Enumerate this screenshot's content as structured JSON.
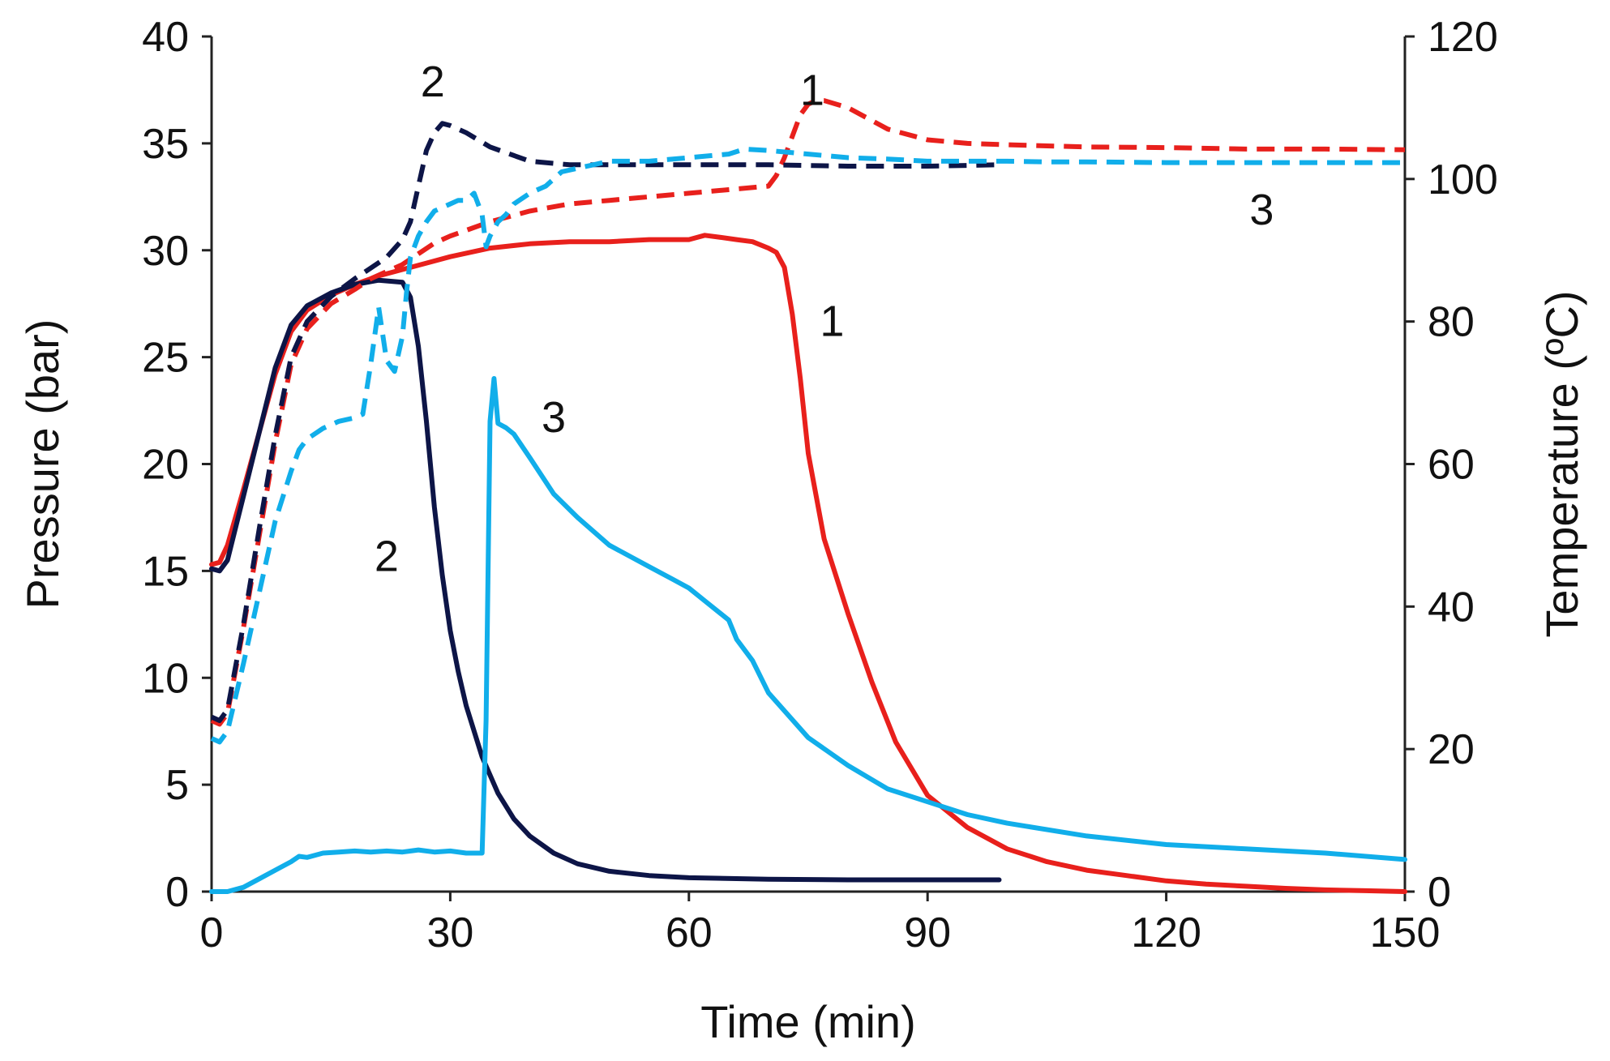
{
  "chart_data": {
    "type": "line",
    "title": "",
    "xlabel": "Time (min)",
    "ylabel": "Pressure (bar)",
    "y2label": "Temperature (ºC)",
    "xlim": [
      0,
      150
    ],
    "ylim": [
      0,
      40
    ],
    "y2lim": [
      0,
      120
    ],
    "xticks": [
      "0",
      "30",
      "60",
      "90",
      "120",
      "150"
    ],
    "yticks": [
      "0",
      "5",
      "10",
      "15",
      "20",
      "25",
      "30",
      "35",
      "40"
    ],
    "y2ticks": [
      "0",
      "20",
      "40",
      "60",
      "80",
      "100",
      "120"
    ],
    "grid": false,
    "colors": {
      "run1": "#e8201c",
      "run2": "#0d1547",
      "run3": "#11aeea"
    },
    "series": [
      {
        "name": "Pressure 1",
        "run": "1",
        "quantity": "pressure",
        "axis": "left",
        "style": "solid",
        "color": "#e8201c",
        "x": [
          0,
          1,
          2,
          4,
          6,
          8,
          10,
          12,
          15,
          18,
          21,
          24,
          27,
          30,
          35,
          40,
          45,
          50,
          55,
          60,
          62,
          64,
          66,
          68,
          70,
          71,
          72,
          73,
          74,
          75,
          77,
          80,
          83,
          86,
          90,
          95,
          100,
          105,
          110,
          115,
          120,
          125,
          130,
          135,
          140,
          145,
          150
        ],
        "y": [
          15.3,
          15.4,
          16.2,
          18.8,
          21.5,
          24.2,
          26.2,
          27.2,
          27.9,
          28.4,
          28.8,
          29.1,
          29.4,
          29.7,
          30.1,
          30.3,
          30.4,
          30.4,
          30.5,
          30.5,
          30.7,
          30.6,
          30.5,
          30.4,
          30.1,
          29.9,
          29.2,
          27.0,
          24.0,
          20.5,
          16.5,
          13.0,
          9.8,
          7.0,
          4.5,
          3.0,
          2.0,
          1.4,
          1.0,
          0.75,
          0.5,
          0.35,
          0.25,
          0.15,
          0.08,
          0.04,
          0.0
        ]
      },
      {
        "name": "Pressure 2",
        "run": "2",
        "quantity": "pressure",
        "axis": "left",
        "style": "solid",
        "color": "#0d1547",
        "x": [
          0,
          1,
          2,
          4,
          6,
          8,
          10,
          12,
          15,
          18,
          21,
          24,
          25,
          26,
          27,
          28,
          29,
          30,
          31,
          32,
          34,
          36,
          38,
          40,
          43,
          46,
          50,
          55,
          60,
          70,
          80,
          90,
          99
        ],
        "y": [
          15.1,
          15.0,
          15.5,
          18.5,
          21.5,
          24.5,
          26.5,
          27.4,
          28.0,
          28.4,
          28.6,
          28.5,
          27.8,
          25.5,
          22.0,
          18.0,
          14.8,
          12.2,
          10.3,
          8.7,
          6.3,
          4.6,
          3.4,
          2.6,
          1.8,
          1.3,
          0.95,
          0.75,
          0.65,
          0.58,
          0.55,
          0.55,
          0.55
        ]
      },
      {
        "name": "Pressure 3",
        "run": "3",
        "quantity": "pressure",
        "axis": "left",
        "style": "solid",
        "color": "#11aeea",
        "x": [
          0,
          2,
          4,
          6,
          8,
          10,
          11,
          12,
          14,
          16,
          18,
          20,
          22,
          24,
          26,
          28,
          30,
          32,
          34,
          34.5,
          35,
          35.5,
          36,
          37,
          38,
          40,
          43,
          46,
          50,
          55,
          58,
          60,
          62,
          64,
          65,
          66,
          68,
          70,
          75,
          80,
          85,
          90,
          95,
          100,
          110,
          120,
          130,
          140,
          150
        ],
        "y": [
          0.0,
          0.0,
          0.2,
          0.6,
          1.0,
          1.4,
          1.65,
          1.6,
          1.8,
          1.85,
          1.9,
          1.85,
          1.9,
          1.85,
          1.95,
          1.85,
          1.9,
          1.8,
          1.8,
          8.0,
          22.0,
          24.0,
          21.9,
          21.7,
          21.4,
          20.3,
          18.6,
          17.5,
          16.2,
          15.2,
          14.6,
          14.2,
          13.6,
          13.0,
          12.7,
          11.8,
          10.8,
          9.3,
          7.2,
          5.9,
          4.8,
          4.2,
          3.6,
          3.2,
          2.6,
          2.2,
          2.0,
          1.8,
          1.5
        ]
      },
      {
        "name": "Temperature 1",
        "run": "1",
        "quantity": "temperature",
        "axis": "right",
        "style": "dashed",
        "color": "#e8201c",
        "x": [
          0,
          1,
          2,
          4,
          6,
          8,
          10,
          12,
          15,
          18,
          20,
          22,
          24,
          26,
          28,
          30,
          35,
          40,
          45,
          50,
          55,
          60,
          65,
          70,
          71,
          72,
          73,
          74,
          75,
          76,
          77,
          80,
          85,
          90,
          95,
          100,
          110,
          120,
          130,
          140,
          150
        ],
        "y": [
          24.0,
          23.5,
          25.0,
          37.0,
          50.0,
          63.0,
          74.0,
          79.0,
          82.5,
          84.5,
          86.0,
          87.0,
          88.0,
          89.5,
          91.0,
          92.0,
          94.0,
          95.5,
          96.5,
          97.0,
          97.5,
          98.0,
          98.5,
          99.0,
          100.5,
          103.0,
          106.0,
          109.0,
          110.5,
          111.0,
          111.0,
          110.0,
          107.0,
          105.5,
          105.0,
          104.8,
          104.5,
          104.4,
          104.2,
          104.2,
          104.1
        ]
      },
      {
        "name": "Temperature 2",
        "run": "2",
        "quantity": "temperature",
        "axis": "right",
        "style": "dashed",
        "color": "#0d1547",
        "x": [
          0,
          1,
          2,
          4,
          6,
          8,
          10,
          12,
          15,
          18,
          20,
          22,
          24,
          25,
          26,
          27,
          28,
          29,
          30,
          32,
          35,
          40,
          45,
          50,
          60,
          70,
          80,
          90,
          99
        ],
        "y": [
          24.5,
          24.0,
          25.5,
          37.5,
          51.0,
          64.0,
          75.0,
          80.0,
          83.5,
          86.0,
          87.5,
          89.0,
          91.5,
          94.0,
          99.0,
          104.0,
          106.5,
          107.8,
          107.5,
          106.5,
          104.5,
          102.5,
          102.0,
          102.0,
          102.0,
          102.0,
          101.8,
          101.8,
          102.0
        ]
      },
      {
        "name": "Temperature 3",
        "run": "3",
        "quantity": "temperature",
        "axis": "right",
        "style": "dashed",
        "color": "#11aeea",
        "x": [
          0,
          1,
          2,
          4,
          6,
          8,
          10,
          11,
          12,
          14,
          16,
          18,
          19,
          20,
          21,
          22,
          23,
          24,
          24.5,
          25,
          26,
          27,
          28,
          29,
          30,
          31,
          32,
          33,
          34,
          34.5,
          35,
          36,
          37,
          38,
          40,
          42,
          44,
          46,
          48,
          50,
          55,
          60,
          65,
          67,
          70,
          75,
          80,
          85,
          90,
          95,
          100,
          105,
          110,
          120,
          130,
          140,
          150
        ],
        "y": [
          21.5,
          21.0,
          22.5,
          32.0,
          42.0,
          52.0,
          59.0,
          62.0,
          63.5,
          65.0,
          66.0,
          66.5,
          67.0,
          74.0,
          82.0,
          74.5,
          73.0,
          78.0,
          84.0,
          89.0,
          92.0,
          94.0,
          95.5,
          96.0,
          96.5,
          97.0,
          97.0,
          98.0,
          95.0,
          90.5,
          92.0,
          94.0,
          95.0,
          96.5,
          98.0,
          99.0,
          101.0,
          101.5,
          102.0,
          102.5,
          102.5,
          103.0,
          103.5,
          104.2,
          104.0,
          103.5,
          103.0,
          102.8,
          102.5,
          102.5,
          102.5,
          102.4,
          102.4,
          102.3,
          102.3,
          102.3,
          102.3
        ]
      }
    ],
    "annotations": [
      {
        "text": "1",
        "x": 75.5,
        "y": 36.8,
        "axis": "left"
      },
      {
        "text": "2",
        "x": 27.8,
        "y": 37.2,
        "axis": "left"
      },
      {
        "text": "3",
        "x": 132,
        "y": 31.2,
        "axis": "left"
      },
      {
        "text": "1",
        "x": 78,
        "y": 26.0,
        "axis": "left"
      },
      {
        "text": "3",
        "x": 43,
        "y": 21.5,
        "axis": "left"
      },
      {
        "text": "2",
        "x": 22,
        "y": 15.0,
        "axis": "left"
      }
    ]
  }
}
